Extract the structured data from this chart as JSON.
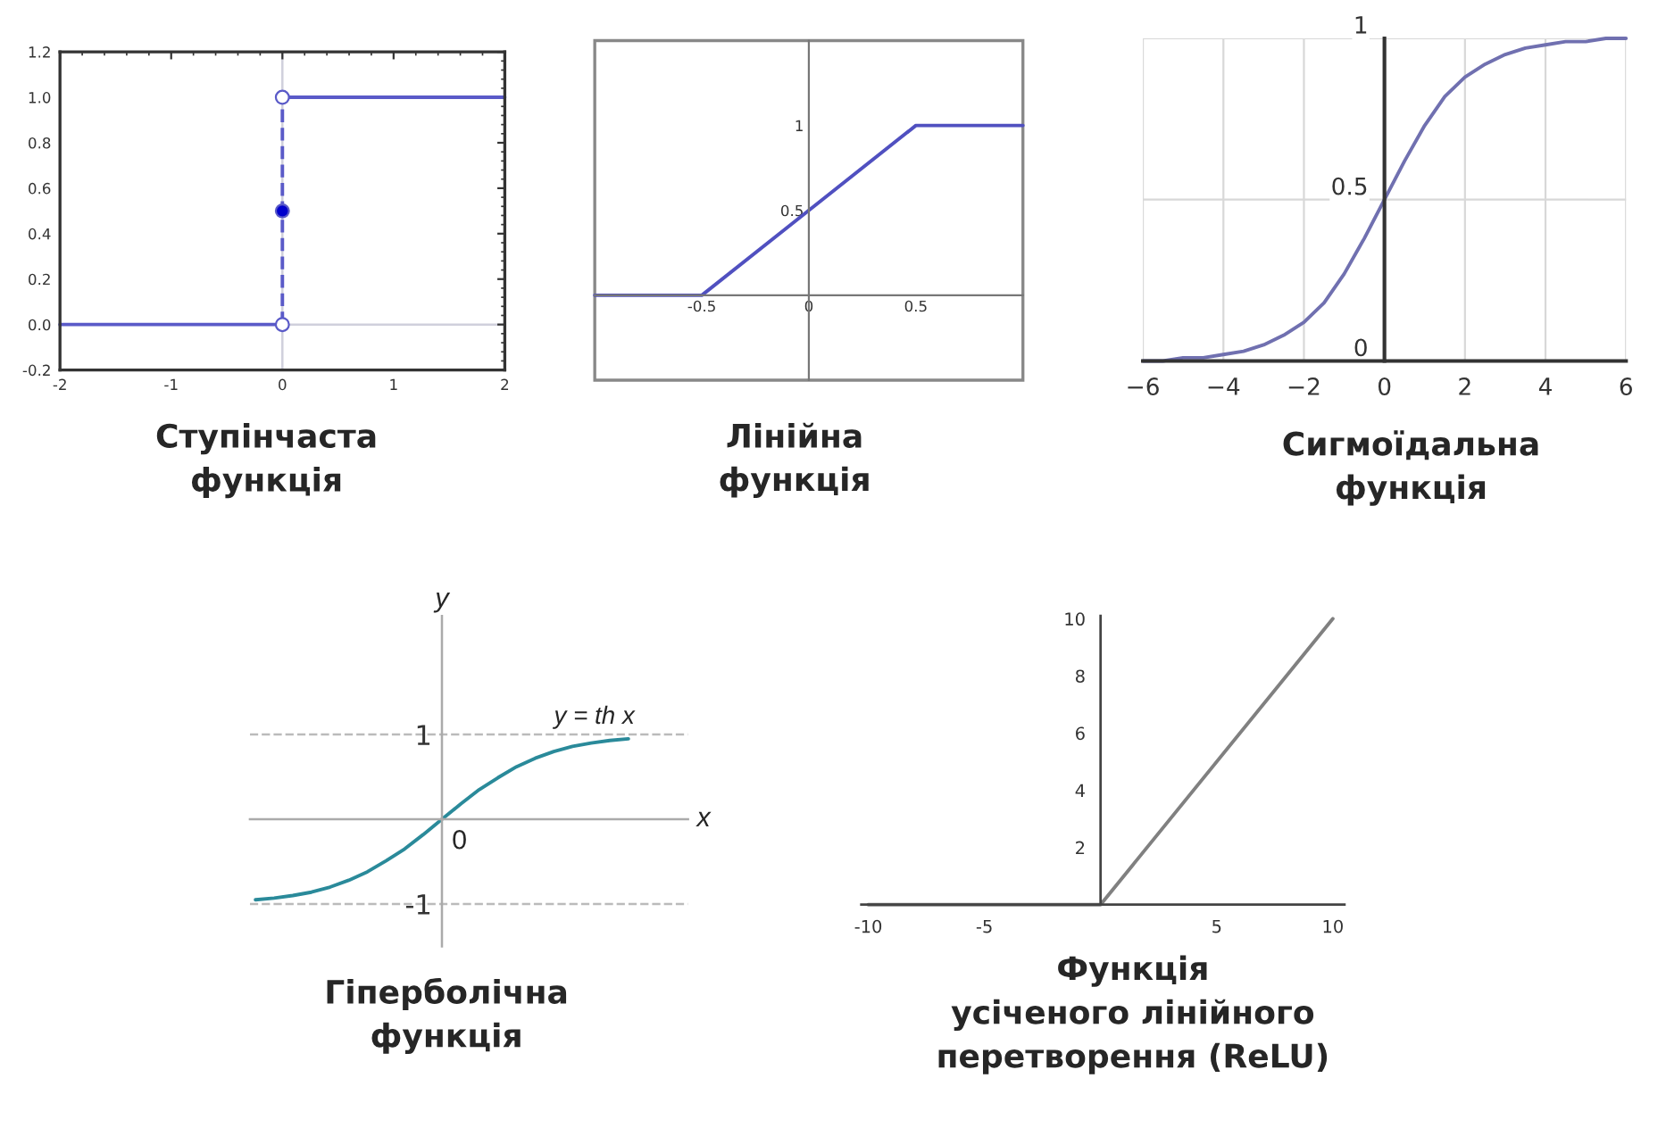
{
  "chart_data": [
    {
      "type": "line",
      "title": "Ступінчаста\nфункція",
      "xlim": [
        -2,
        2
      ],
      "ylim": [
        -0.2,
        1.2
      ],
      "xticks": [
        -2,
        -1,
        0,
        1,
        2
      ],
      "yticks": [
        {
          "value": -0.2,
          "label": "-0.2"
        },
        {
          "value": 0,
          "label": "0.0"
        },
        {
          "value": 0.2,
          "label": "0.2"
        },
        {
          "value": 0.4,
          "label": "0.4"
        },
        {
          "value": 0.6,
          "label": "0.6"
        },
        {
          "value": 0.8,
          "label": "0.8"
        },
        {
          "value": 1,
          "label": "1.0"
        },
        {
          "value": 1.2,
          "label": "1.2"
        }
      ],
      "ref_lines": [
        {
          "axis": "x",
          "value": 0,
          "color": "#d0d0dc"
        },
        {
          "axis": "y",
          "value": 0,
          "color": "#d0d0dc"
        }
      ],
      "series": [
        {
          "color": "#5a5ac8",
          "x": [
            -2,
            0
          ],
          "values": [
            0,
            0
          ]
        },
        {
          "color": "#5a5ac8",
          "x": [
            0,
            2
          ],
          "values": [
            1,
            1
          ]
        },
        {
          "color": "#5a5ac8",
          "x": [
            0,
            0
          ],
          "values": [
            0,
            1
          ],
          "line_style": "dashed"
        },
        {
          "type": "scatter",
          "marker": "circle",
          "color": "#ffffff",
          "x": [
            0,
            0
          ],
          "values": [
            0,
            1
          ]
        },
        {
          "type": "scatter",
          "marker": "circle",
          "color": "#0000cc",
          "x": [
            0
          ],
          "values": [
            0.5
          ]
        }
      ]
    },
    {
      "type": "line",
      "title": "Лінійна\nфункція",
      "xlim": [
        -1,
        1
      ],
      "ylim": [
        -0.5,
        1.5
      ],
      "xticks": [
        -0.5,
        0,
        0.5
      ],
      "yticks": [
        0.5,
        1
      ],
      "series": [
        {
          "color": "#5050c0",
          "x": [
            -1,
            -0.5,
            0.5,
            1
          ],
          "values": [
            0,
            0,
            1,
            1
          ]
        }
      ]
    },
    {
      "type": "line",
      "title": "Сигмоїдальна\nфункція",
      "xlim": [
        -6,
        6
      ],
      "ylim": [
        0,
        1
      ],
      "xticks": [
        {
          "value": -6,
          "label": "−6"
        },
        {
          "value": -4,
          "label": "−4"
        },
        {
          "value": -2,
          "label": "−2"
        },
        0,
        2,
        4,
        6
      ],
      "yticks": [
        0,
        0.5,
        1
      ],
      "grid": true,
      "series": [
        {
          "color": "#7070b0",
          "x": [
            -6,
            -5.5,
            -5,
            -4.5,
            -4,
            -3.5,
            -3,
            -2.5,
            -2,
            -1.5,
            -1,
            -0.5,
            0,
            0.5,
            1,
            1.5,
            2,
            2.5,
            3,
            3.5,
            4,
            4.5,
            5,
            5.5,
            6
          ],
          "values": [
            0.0,
            0.0,
            0.01,
            0.01,
            0.02,
            0.03,
            0.05,
            0.08,
            0.12,
            0.18,
            0.27,
            0.38,
            0.5,
            0.62,
            0.73,
            0.82,
            0.88,
            0.92,
            0.95,
            0.97,
            0.98,
            0.99,
            0.99,
            1.0,
            1.0
          ]
        }
      ]
    },
    {
      "type": "line",
      "title": "Гіперболічна\nфункція",
      "xlabel": "x",
      "ylabel": "y",
      "tick_labels": "y",
      "categories": [
        null,
        null,
        null,
        null,
        null,
        null,
        null,
        null,
        null,
        null,
        null,
        null,
        null,
        null,
        null,
        null,
        null,
        null,
        null,
        null,
        null
      ],
      "ylim": [
        -1.5,
        2.4
      ],
      "yticks": [
        -1,
        1
      ],
      "annotations": [
        "y = th x",
        "0"
      ],
      "ref_lines": [
        {
          "axis": "y",
          "value": 1,
          "color": "#bbbbbb",
          "line_style": "dashed"
        },
        {
          "axis": "y",
          "value": -1,
          "color": "#bbbbbb",
          "line_style": "dashed"
        }
      ],
      "series": [
        {
          "color": "#2a8a9a",
          "values": [
            -0.95,
            -0.93,
            -0.9,
            -0.86,
            -0.8,
            -0.72,
            -0.62,
            -0.49,
            -0.35,
            -0.18,
            0,
            0.18,
            0.35,
            0.49,
            0.62,
            0.72,
            0.8,
            0.86,
            0.9,
            0.93,
            0.95
          ]
        }
      ]
    },
    {
      "type": "line",
      "title": "Функція\nусіченого лінійного\nперетворення (ReLU)",
      "xlim": [
        -10.3,
        10.5
      ],
      "ylim": [
        0,
        10.1
      ],
      "xticks": [
        -10,
        -5,
        5,
        10
      ],
      "yticks": [
        2,
        4,
        6,
        8,
        10
      ],
      "series": [
        {
          "color": "#808080",
          "x": [
            -10,
            0,
            10
          ],
          "values": [
            0,
            0,
            10
          ]
        }
      ]
    }
  ]
}
